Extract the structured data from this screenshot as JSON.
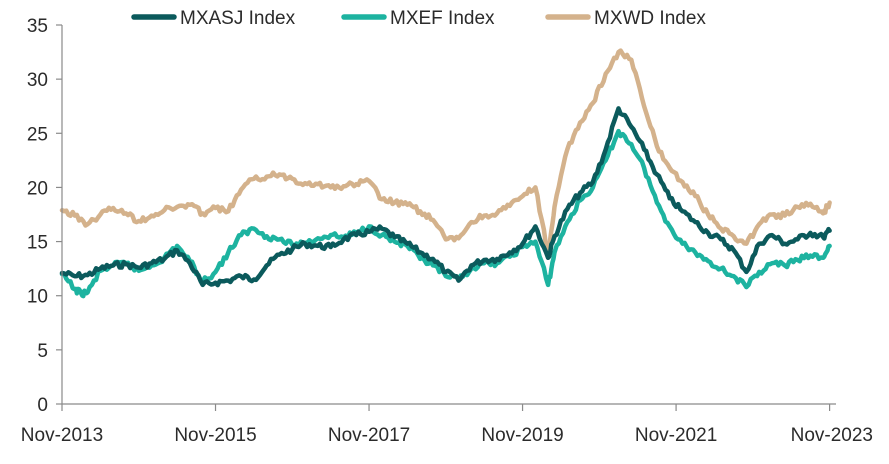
{
  "chart_data": {
    "type": "line",
    "title": "",
    "xlabel": "",
    "ylabel": "",
    "ylim": [
      0,
      35
    ],
    "yticks": [
      0,
      5,
      10,
      15,
      20,
      25,
      30,
      35
    ],
    "xlim": [
      "2013-11",
      "2023-12"
    ],
    "xticks": [
      "Nov-2013",
      "Nov-2015",
      "Nov-2017",
      "Nov-2019",
      "Nov-2021",
      "Nov-2023"
    ],
    "grid": false,
    "legend_position": "top",
    "series": [
      {
        "name": "MXASJ Index",
        "color": "#0b5a5c",
        "points": [
          [
            "2013-11",
            12.1
          ],
          [
            "2014-01",
            11.8
          ],
          [
            "2014-03",
            11.9
          ],
          [
            "2014-05",
            12.5
          ],
          [
            "2014-07",
            12.8
          ],
          [
            "2014-09",
            12.9
          ],
          [
            "2014-11",
            12.6
          ],
          [
            "2015-01",
            13.0
          ],
          [
            "2015-03",
            13.4
          ],
          [
            "2015-05",
            14.2
          ],
          [
            "2015-07",
            13.0
          ],
          [
            "2015-09",
            11.0
          ],
          [
            "2015-11",
            11.2
          ],
          [
            "2016-01",
            11.4
          ],
          [
            "2016-03",
            11.8
          ],
          [
            "2016-05",
            11.5
          ],
          [
            "2016-07",
            12.8
          ],
          [
            "2016-09",
            13.8
          ],
          [
            "2016-11",
            14.3
          ],
          [
            "2017-01",
            14.8
          ],
          [
            "2017-03",
            14.6
          ],
          [
            "2017-05",
            14.5
          ],
          [
            "2017-07",
            15.2
          ],
          [
            "2017-09",
            15.6
          ],
          [
            "2017-11",
            15.9
          ],
          [
            "2018-01",
            16.2
          ],
          [
            "2018-03",
            15.4
          ],
          [
            "2018-05",
            14.8
          ],
          [
            "2018-07",
            14.0
          ],
          [
            "2018-09",
            13.4
          ],
          [
            "2018-11",
            12.2
          ],
          [
            "2019-01",
            11.4
          ],
          [
            "2019-03",
            12.8
          ],
          [
            "2019-05",
            13.3
          ],
          [
            "2019-07",
            13.4
          ],
          [
            "2019-09",
            14.0
          ],
          [
            "2019-11",
            14.8
          ],
          [
            "2020-01",
            16.4
          ],
          [
            "2020-03",
            13.5
          ],
          [
            "2020-04",
            15.5
          ],
          [
            "2020-06",
            18.0
          ],
          [
            "2020-08",
            19.5
          ],
          [
            "2020-10",
            20.5
          ],
          [
            "2020-12",
            23.5
          ],
          [
            "2021-02",
            27.3
          ],
          [
            "2021-04",
            25.6
          ],
          [
            "2021-06",
            23.5
          ],
          [
            "2021-08",
            21.2
          ],
          [
            "2021-10",
            19.0
          ],
          [
            "2021-12",
            17.8
          ],
          [
            "2022-02",
            16.8
          ],
          [
            "2022-04",
            15.8
          ],
          [
            "2022-06",
            15.2
          ],
          [
            "2022-08",
            14.2
          ],
          [
            "2022-10",
            12.2
          ],
          [
            "2022-12",
            14.8
          ],
          [
            "2023-02",
            15.6
          ],
          [
            "2023-04",
            14.8
          ],
          [
            "2023-06",
            15.2
          ],
          [
            "2023-08",
            15.8
          ],
          [
            "2023-10",
            15.4
          ],
          [
            "2023-11",
            16.0
          ]
        ]
      },
      {
        "name": "MXEF Index",
        "color": "#1db3a0",
        "points": [
          [
            "2013-11",
            12.0
          ],
          [
            "2014-01",
            10.6
          ],
          [
            "2014-02",
            10.2
          ],
          [
            "2014-03",
            10.3
          ],
          [
            "2014-05",
            12.3
          ],
          [
            "2014-07",
            12.8
          ],
          [
            "2014-09",
            13.0
          ],
          [
            "2014-11",
            12.3
          ],
          [
            "2015-01",
            12.8
          ],
          [
            "2015-03",
            13.5
          ],
          [
            "2015-05",
            14.6
          ],
          [
            "2015-07",
            13.2
          ],
          [
            "2015-09",
            11.3
          ],
          [
            "2015-11",
            12.2
          ],
          [
            "2016-01",
            14.0
          ],
          [
            "2016-03",
            15.6
          ],
          [
            "2016-05",
            16.2
          ],
          [
            "2016-07",
            15.5
          ],
          [
            "2016-09",
            15.2
          ],
          [
            "2016-11",
            14.7
          ],
          [
            "2017-01",
            14.9
          ],
          [
            "2017-03",
            15.3
          ],
          [
            "2017-05",
            15.6
          ],
          [
            "2017-07",
            15.4
          ],
          [
            "2017-09",
            15.8
          ],
          [
            "2017-11",
            16.4
          ],
          [
            "2018-01",
            15.6
          ],
          [
            "2018-03",
            15.0
          ],
          [
            "2018-05",
            14.6
          ],
          [
            "2018-07",
            13.4
          ],
          [
            "2018-09",
            12.8
          ],
          [
            "2018-11",
            11.8
          ],
          [
            "2019-01",
            11.5
          ],
          [
            "2019-03",
            12.5
          ],
          [
            "2019-05",
            13.0
          ],
          [
            "2019-07",
            13.0
          ],
          [
            "2019-09",
            13.6
          ],
          [
            "2019-11",
            14.5
          ],
          [
            "2020-01",
            15.0
          ],
          [
            "2020-03",
            11.0
          ],
          [
            "2020-04",
            14.0
          ],
          [
            "2020-06",
            16.8
          ],
          [
            "2020-08",
            18.8
          ],
          [
            "2020-10",
            20.0
          ],
          [
            "2020-12",
            22.5
          ],
          [
            "2021-02",
            25.2
          ],
          [
            "2021-04",
            24.0
          ],
          [
            "2021-06",
            21.8
          ],
          [
            "2021-08",
            18.6
          ],
          [
            "2021-10",
            16.4
          ],
          [
            "2021-12",
            14.8
          ],
          [
            "2022-02",
            14.0
          ],
          [
            "2022-04",
            13.2
          ],
          [
            "2022-06",
            12.5
          ],
          [
            "2022-08",
            11.8
          ],
          [
            "2022-10",
            10.8
          ],
          [
            "2022-12",
            12.2
          ],
          [
            "2023-02",
            13.0
          ],
          [
            "2023-04",
            12.8
          ],
          [
            "2023-06",
            13.3
          ],
          [
            "2023-08",
            13.7
          ],
          [
            "2023-10",
            13.5
          ],
          [
            "2023-11",
            14.6
          ]
        ]
      },
      {
        "name": "MXWD Index",
        "color": "#d4b28c",
        "points": [
          [
            "2013-11",
            17.9
          ],
          [
            "2014-01",
            17.4
          ],
          [
            "2014-03",
            16.6
          ],
          [
            "2014-05",
            17.5
          ],
          [
            "2014-07",
            18.1
          ],
          [
            "2014-09",
            17.6
          ],
          [
            "2014-11",
            16.9
          ],
          [
            "2015-01",
            17.4
          ],
          [
            "2015-03",
            17.9
          ],
          [
            "2015-05",
            18.2
          ],
          [
            "2015-07",
            18.4
          ],
          [
            "2015-09",
            17.6
          ],
          [
            "2015-11",
            18.1
          ],
          [
            "2016-01",
            17.8
          ],
          [
            "2016-03",
            19.8
          ],
          [
            "2016-05",
            20.8
          ],
          [
            "2016-07",
            21.0
          ],
          [
            "2016-09",
            21.2
          ],
          [
            "2016-11",
            20.8
          ],
          [
            "2017-01",
            20.4
          ],
          [
            "2017-03",
            20.3
          ],
          [
            "2017-05",
            20.0
          ],
          [
            "2017-07",
            20.1
          ],
          [
            "2017-09",
            20.3
          ],
          [
            "2017-11",
            20.6
          ],
          [
            "2018-01",
            18.9
          ],
          [
            "2018-03",
            18.6
          ],
          [
            "2018-05",
            18.4
          ],
          [
            "2018-07",
            17.8
          ],
          [
            "2018-09",
            17.0
          ],
          [
            "2018-11",
            15.2
          ],
          [
            "2019-01",
            15.3
          ],
          [
            "2019-03",
            16.8
          ],
          [
            "2019-05",
            17.4
          ],
          [
            "2019-07",
            17.6
          ],
          [
            "2019-09",
            18.3
          ],
          [
            "2019-11",
            19.2
          ],
          [
            "2020-01",
            20.0
          ],
          [
            "2020-03",
            13.8
          ],
          [
            "2020-04",
            18.2
          ],
          [
            "2020-06",
            23.5
          ],
          [
            "2020-08",
            26.0
          ],
          [
            "2020-10",
            27.8
          ],
          [
            "2020-12",
            30.5
          ],
          [
            "2021-02",
            32.5
          ],
          [
            "2021-04",
            31.8
          ],
          [
            "2021-06",
            27.5
          ],
          [
            "2021-08",
            23.8
          ],
          [
            "2021-10",
            21.8
          ],
          [
            "2021-12",
            20.5
          ],
          [
            "2022-02",
            19.2
          ],
          [
            "2022-04",
            17.5
          ],
          [
            "2022-06",
            16.2
          ],
          [
            "2022-08",
            15.5
          ],
          [
            "2022-10",
            14.8
          ],
          [
            "2022-12",
            16.6
          ],
          [
            "2023-02",
            17.5
          ],
          [
            "2023-04",
            17.4
          ],
          [
            "2023-06",
            18.2
          ],
          [
            "2023-08",
            18.5
          ],
          [
            "2023-10",
            17.6
          ],
          [
            "2023-11",
            18.6
          ]
        ]
      }
    ]
  }
}
